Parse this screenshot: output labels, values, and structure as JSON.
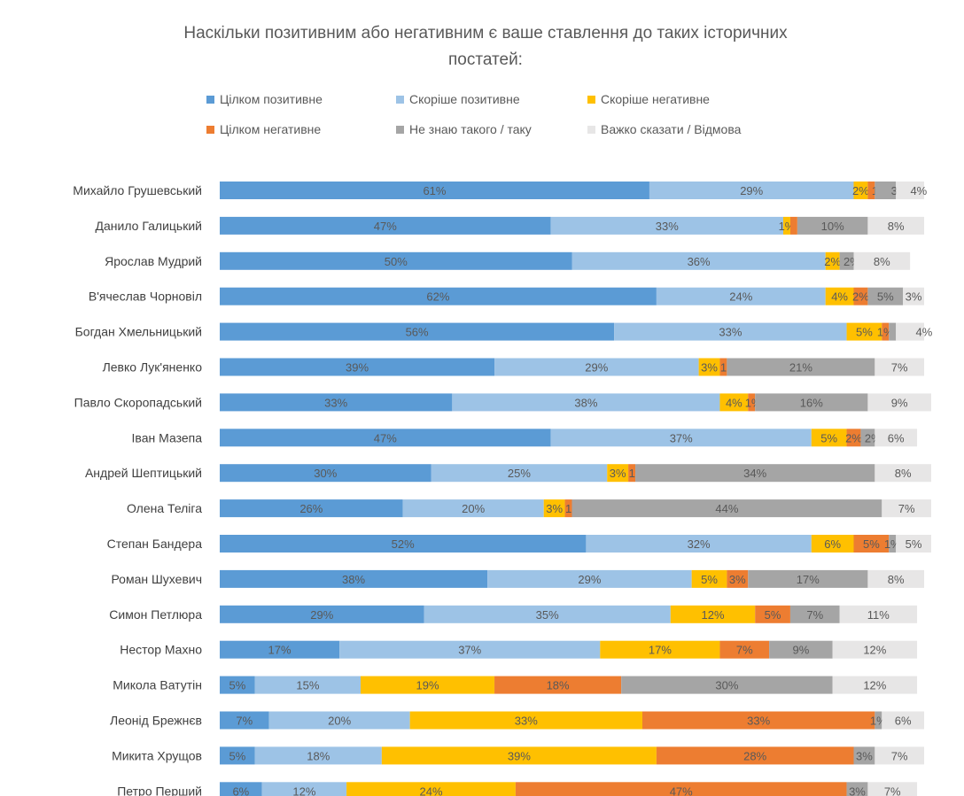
{
  "chart_data": {
    "type": "bar",
    "orientation": "horizontal",
    "stacked": "100%",
    "title": "Наскільки позитивним або негативним є ваше ставлення до таких історичних постатей:",
    "title_lines": [
      "Наскільки позитивним або негативним є ваше ставлення до таких історичних",
      "постатей:"
    ],
    "legend_position": "top",
    "grid": false,
    "categories": [
      "Михайло Грушевський",
      "Данило Галицький",
      "Ярослав Мудрий",
      "В'ячеслав Чорновіл",
      "Богдан Хмельницький",
      "Левко Лук'яненко",
      "Павло Скоропадський",
      "Іван Мазепа",
      "Андрей Шептицький",
      "Олена Теліга",
      "Степан Бандера",
      "Роман Шухевич",
      "Симон Петлюра",
      "Нестор Махно",
      "Микола Ватутін",
      "Леонід Брежнєв",
      "Микита Хрущов",
      "Петро Перший"
    ],
    "series": [
      {
        "name": "Цілком позитивне",
        "color": "#5b9bd5",
        "values": [
          61,
          47,
          50,
          62,
          56,
          39,
          33,
          47,
          30,
          26,
          52,
          38,
          29,
          17,
          5,
          7,
          5,
          6
        ]
      },
      {
        "name": "Скоріше позитивне",
        "color": "#9dc3e6",
        "values": [
          29,
          33,
          36,
          24,
          33,
          29,
          38,
          37,
          25,
          20,
          32,
          29,
          35,
          37,
          15,
          20,
          18,
          12
        ]
      },
      {
        "name": "Скоріше негативне",
        "color": "#ffc000",
        "values": [
          2,
          1,
          2,
          4,
          5,
          3,
          4,
          5,
          3,
          3,
          6,
          5,
          12,
          17,
          19,
          33,
          39,
          24
        ]
      },
      {
        "name": "Цілком негативне",
        "color": "#ed7d31",
        "values": [
          1,
          1,
          0,
          2,
          1,
          1,
          1,
          2,
          1,
          1,
          5,
          3,
          5,
          7,
          18,
          33,
          28,
          47
        ]
      },
      {
        "name": "Не знаю такого / таку",
        "color": "#a5a5a5",
        "values": [
          3,
          10,
          2,
          5,
          1,
          21,
          16,
          2,
          34,
          44,
          1,
          17,
          7,
          9,
          30,
          1,
          3,
          3
        ]
      },
      {
        "name": "Важко сказати / Відмова",
        "color": "#e7e6e6",
        "values": [
          4,
          8,
          8,
          3,
          4,
          7,
          9,
          6,
          8,
          7,
          5,
          8,
          11,
          12,
          12,
          6,
          7,
          7
        ]
      }
    ],
    "value_format": "{v}%"
  }
}
